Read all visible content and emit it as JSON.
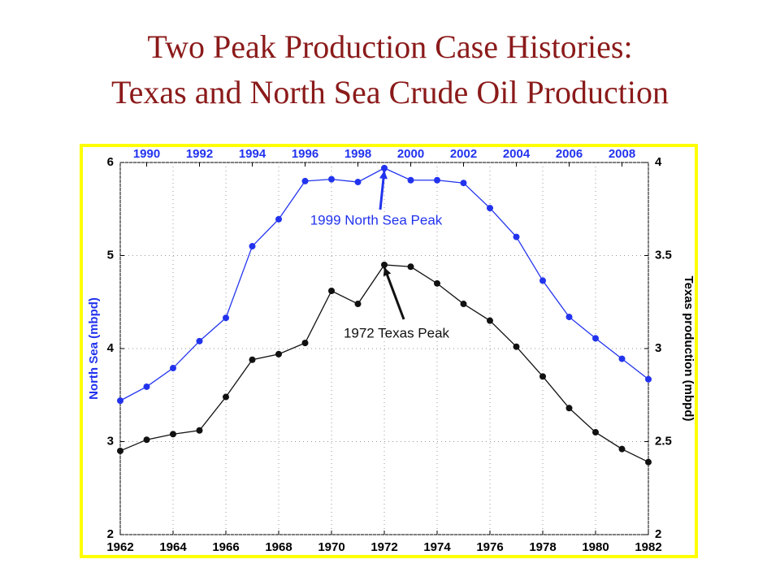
{
  "chart_data": {
    "type": "line",
    "title": [
      "Two Peak Production Case Histories:",
      "Texas and North Sea Crude Oil Production"
    ],
    "ylabel": "North Sea (mbpd)",
    "y2label": "Texas production (mbpd)",
    "xlim": [
      1962,
      1982
    ],
    "xticks": [
      1962,
      1964,
      1966,
      1968,
      1970,
      1972,
      1974,
      1976,
      1978,
      1980,
      1982
    ],
    "x2lim": [
      1989,
      2009
    ],
    "x2ticks": [
      1990,
      1992,
      1994,
      1996,
      1998,
      2000,
      2002,
      2004,
      2006,
      2008
    ],
    "ylim": [
      2,
      6
    ],
    "yticks": [
      2,
      3,
      4,
      5,
      6
    ],
    "y2lim": [
      2,
      4
    ],
    "y2ticks": [
      2,
      2.5,
      3,
      3.5,
      4
    ],
    "grid": true,
    "series": [
      {
        "color": "#2233ee",
        "xaxis": "x2",
        "axis": "y",
        "x": [
          1989,
          1990,
          1991,
          1992,
          1993,
          1994,
          1995,
          1996,
          1997,
          1998,
          1999,
          2000,
          2001,
          2002,
          2003,
          2004,
          2005,
          2006,
          2007,
          2008,
          2009
        ],
        "values": [
          3.44,
          3.59,
          3.79,
          4.08,
          4.33,
          5.1,
          5.39,
          5.8,
          5.82,
          5.79,
          5.94,
          5.81,
          5.81,
          5.78,
          5.51,
          5.2,
          4.73,
          4.34,
          4.11,
          3.89,
          3.67
        ]
      },
      {
        "color": "#111111",
        "xaxis": "x",
        "axis": "y2",
        "x": [
          1962,
          1963,
          1964,
          1965,
          1966,
          1967,
          1968,
          1969,
          1970,
          1971,
          1972,
          1973,
          1974,
          1975,
          1976,
          1977,
          1978,
          1979,
          1980,
          1981,
          1982
        ],
        "values": [
          2.45,
          2.51,
          2.54,
          2.56,
          2.74,
          2.94,
          2.97,
          3.03,
          3.31,
          3.24,
          3.45,
          3.44,
          3.35,
          3.24,
          3.15,
          3.01,
          2.85,
          2.68,
          2.55,
          2.46,
          2.39
        ]
      }
    ],
    "annotations": [
      {
        "text": "1999 North Sea Peak",
        "x": 1999,
        "y": 5.94,
        "xaxis": "x2",
        "axis": "y",
        "color": "#2233ee"
      },
      {
        "text": "1972 Texas Peak",
        "x": 1972,
        "y": 3.45,
        "xaxis": "x",
        "axis": "y2",
        "color": "#111111"
      }
    ]
  }
}
